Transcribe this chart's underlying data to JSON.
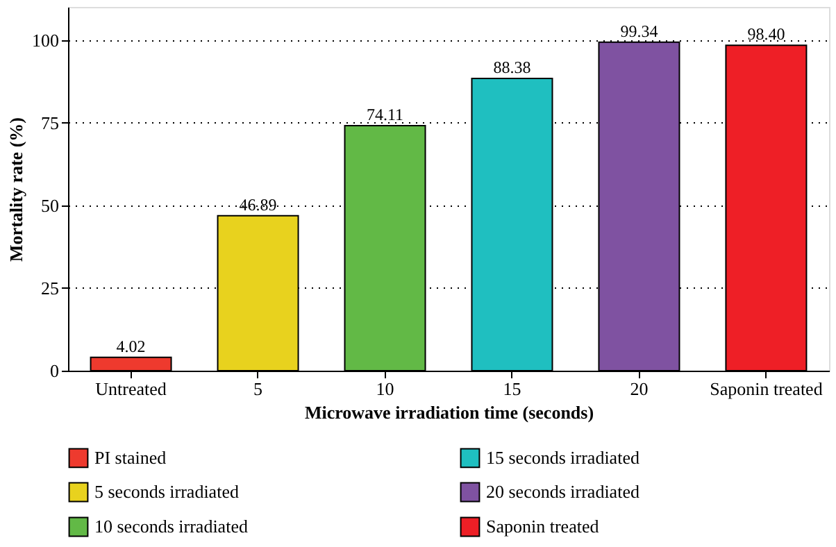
{
  "chart_data": {
    "type": "bar",
    "xlabel": "Microwave irradiation time (seconds)",
    "ylabel": "Mortality rate (%)",
    "categories": [
      "Untreated",
      "5",
      "10",
      "15",
      "20",
      "Saponin treated"
    ],
    "series": [
      {
        "name": "PI stained",
        "color": "#ee3a2e",
        "values": [
          4.02,
          null,
          null,
          null,
          null,
          null
        ],
        "value_labels": [
          "4.02",
          null,
          null,
          null,
          null,
          null
        ]
      },
      {
        "name": "5 seconds irradiated",
        "color": "#e8d21e",
        "values": [
          null,
          46.89,
          null,
          null,
          null,
          null
        ],
        "value_labels": [
          null,
          "46.89",
          null,
          null,
          null,
          null
        ]
      },
      {
        "name": "10 seconds irradiated",
        "color": "#62b946",
        "values": [
          null,
          null,
          74.11,
          null,
          null,
          null
        ],
        "value_labels": [
          null,
          null,
          "74.11",
          null,
          null,
          null
        ]
      },
      {
        "name": "15 seconds irradiated",
        "color": "#1fbfc0",
        "values": [
          null,
          null,
          null,
          88.38,
          null,
          null
        ],
        "value_labels": [
          null,
          null,
          null,
          "88.38",
          null,
          null
        ]
      },
      {
        "name": "20 seconds irradiated",
        "color": "#7f52a1",
        "values": [
          null,
          null,
          null,
          null,
          99.34,
          null
        ],
        "value_labels": [
          null,
          null,
          null,
          null,
          "99.34",
          null
        ]
      },
      {
        "name": "Saponin treated",
        "color": "#ee1f26",
        "values": [
          null,
          null,
          null,
          null,
          null,
          98.4
        ],
        "value_labels": [
          null,
          null,
          null,
          null,
          null,
          "98.40"
        ]
      }
    ],
    "ylim": [
      0,
      110
    ],
    "yticks": [
      0,
      25,
      50,
      75,
      100
    ],
    "grid": "y",
    "legend": "bottom"
  }
}
